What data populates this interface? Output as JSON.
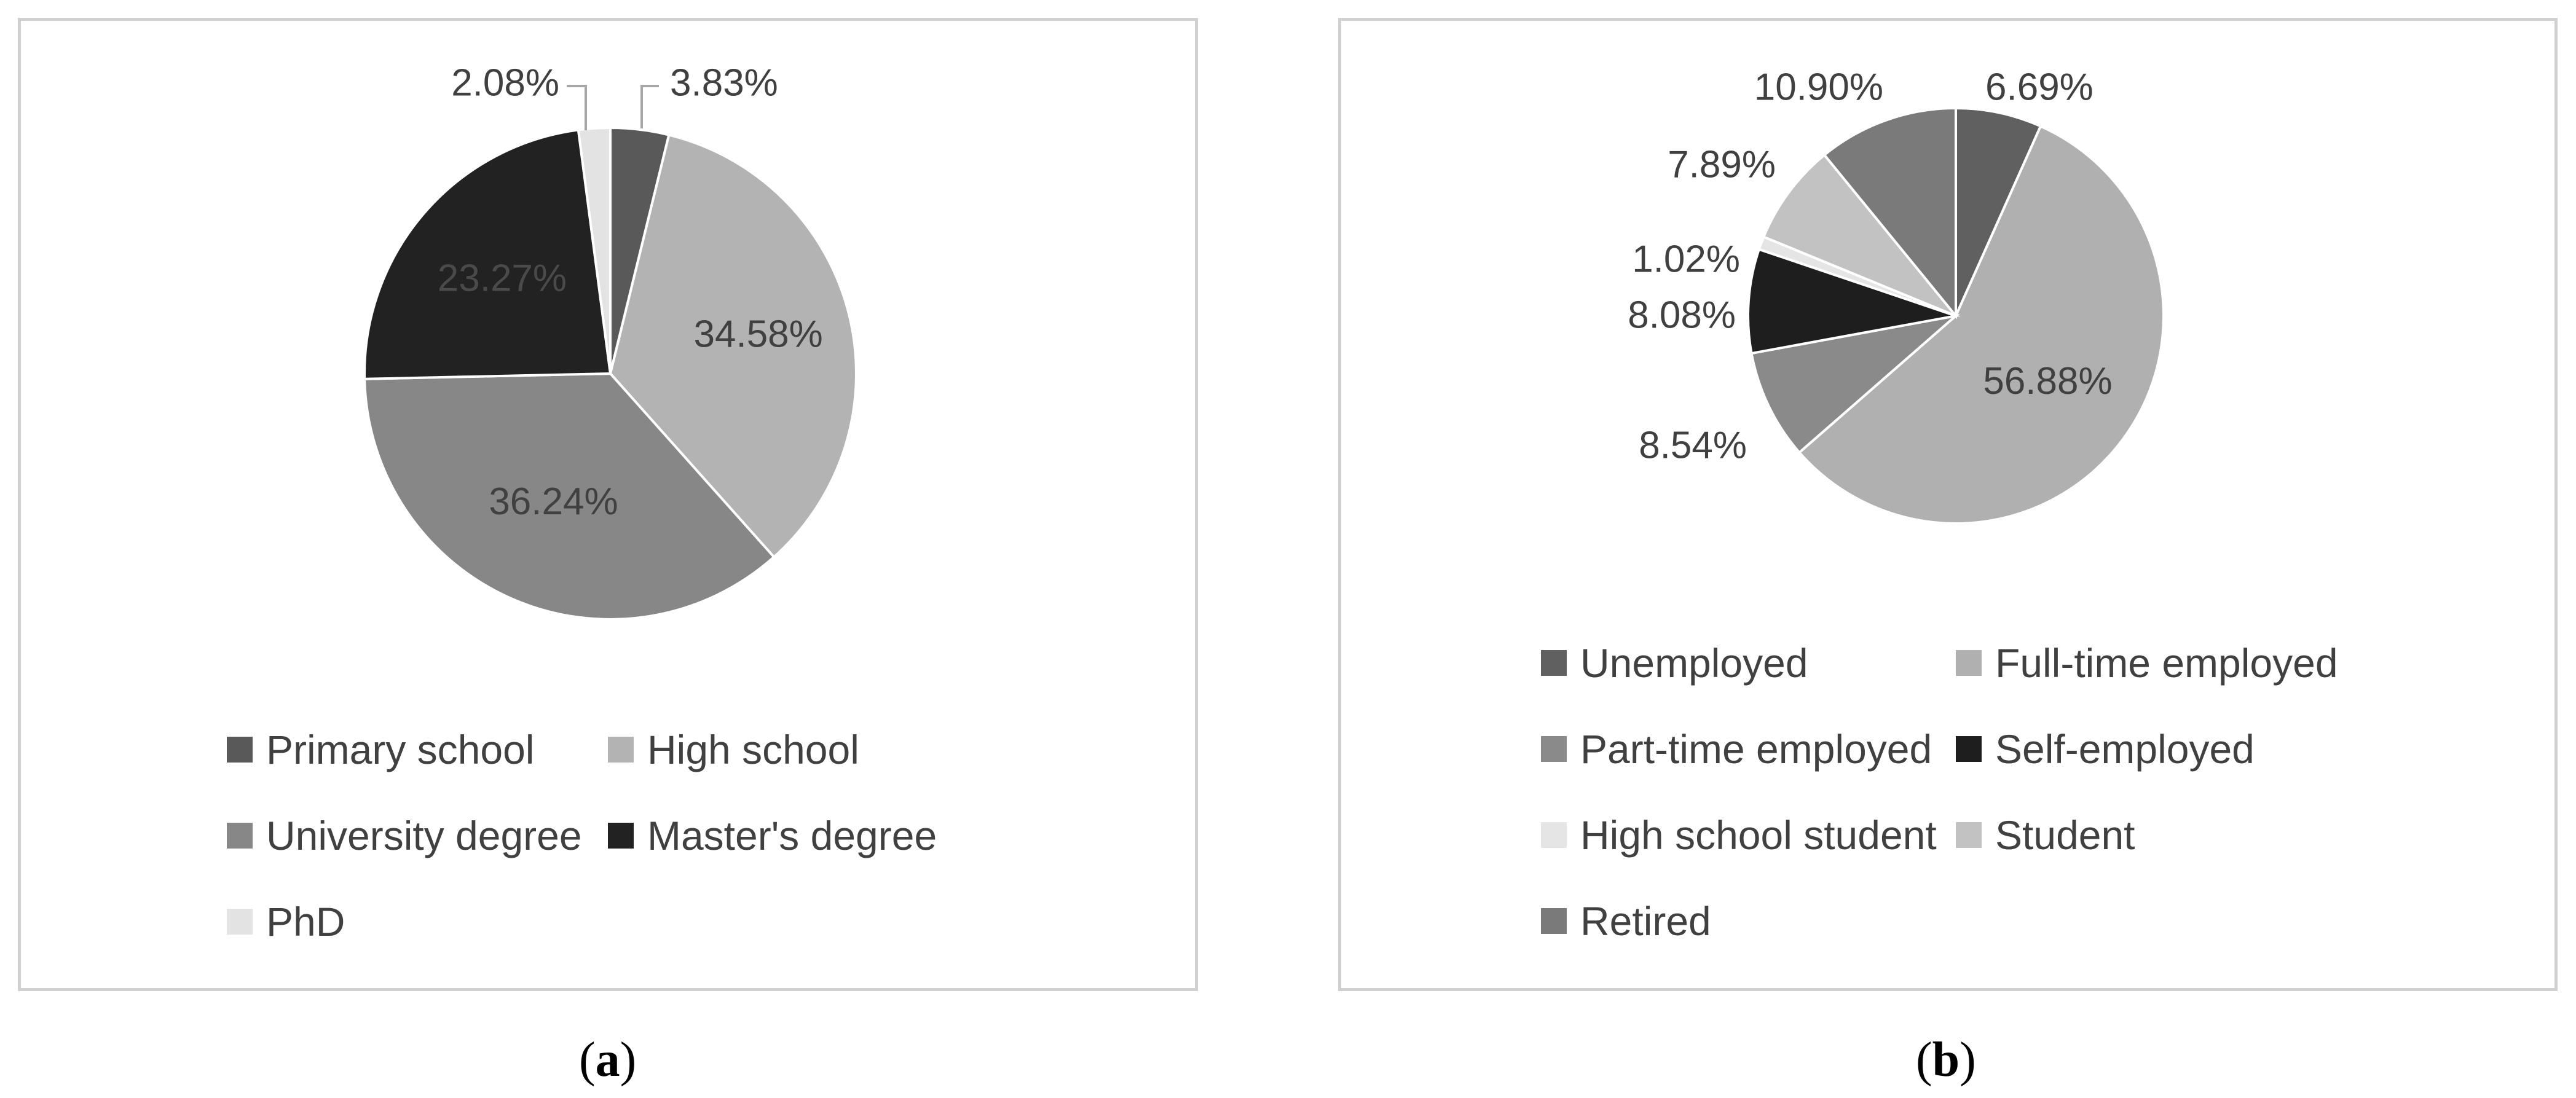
{
  "chart_data": [
    {
      "type": "pie",
      "panel_label": "a",
      "legend_position": "bottom",
      "series": [
        {
          "name": "Primary school",
          "value": 3.83,
          "label": "3.83%",
          "color": "#595959",
          "label_color": "#404040"
        },
        {
          "name": "High school",
          "value": 34.58,
          "label": "34.58%",
          "color": "#b3b3b3",
          "label_color": "#404040"
        },
        {
          "name": "University degree",
          "value": 36.24,
          "label": "36.24%",
          "color": "#878787",
          "label_color": "#404040"
        },
        {
          "name": "Master's degree",
          "value": 23.27,
          "label": "23.27%",
          "color": "#222222",
          "label_color": "#4a4a4a"
        },
        {
          "name": "PhD",
          "value": 2.08,
          "label": "2.08%",
          "color": "#e3e3e3",
          "label_color": "#404040"
        }
      ]
    },
    {
      "type": "pie",
      "panel_label": "b",
      "legend_position": "bottom",
      "series": [
        {
          "name": "Unemployed",
          "value": 6.69,
          "label": "6.69%",
          "color": "#606060",
          "label_color": "#404040"
        },
        {
          "name": "Full-time employed",
          "value": 56.88,
          "label": "56.88%",
          "color": "#b0b0b0",
          "label_color": "#404040"
        },
        {
          "name": "Part-time employed",
          "value": 8.54,
          "label": "8.54%",
          "color": "#8a8a8a",
          "label_color": "#404040"
        },
        {
          "name": "Self-employed",
          "value": 8.08,
          "label": "8.08%",
          "color": "#1e1e1e",
          "label_color": "#404040"
        },
        {
          "name": "High school student",
          "value": 1.02,
          "label": "1.02%",
          "color": "#e5e5e5",
          "label_color": "#404040"
        },
        {
          "name": "Student",
          "value": 7.89,
          "label": "7.89%",
          "color": "#c2c2c2",
          "label_color": "#404040"
        },
        {
          "name": "Retired",
          "value": 10.9,
          "label": "10.90%",
          "color": "#7a7a7a",
          "label_color": "#404040"
        }
      ]
    }
  ]
}
